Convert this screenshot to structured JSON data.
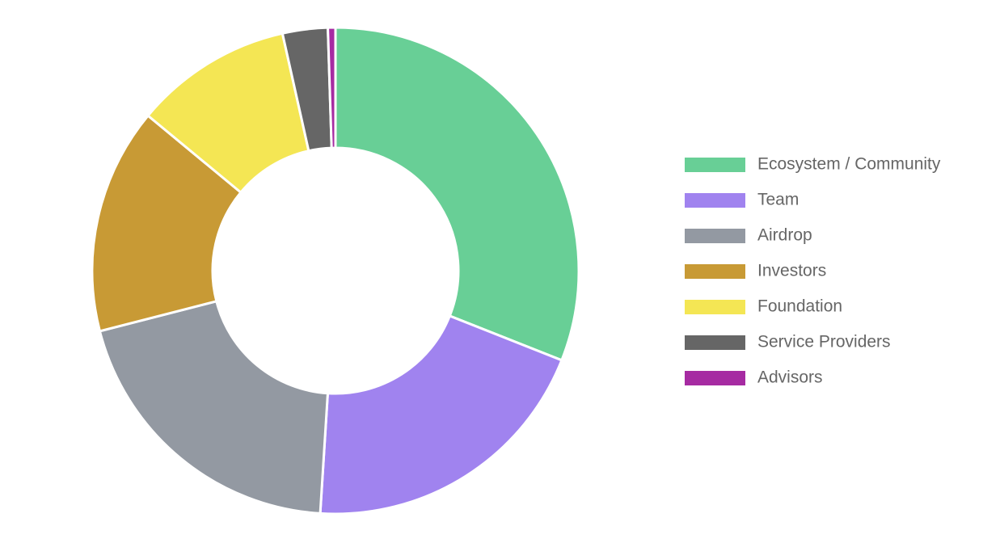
{
  "chart_data": {
    "type": "doughnut",
    "categories": [
      "Ecosystem / Community",
      "Team",
      "Airdrop",
      "Investors",
      "Foundation",
      "Service Providers",
      "Advisors"
    ],
    "values": [
      31,
      20,
      20,
      15,
      10.5,
      3,
      0.5
    ],
    "colors": [
      "#68cf96",
      "#a083ef",
      "#9399a2",
      "#c89a35",
      "#f4e654",
      "#666666",
      "#a62ba2"
    ],
    "legend": "right"
  }
}
